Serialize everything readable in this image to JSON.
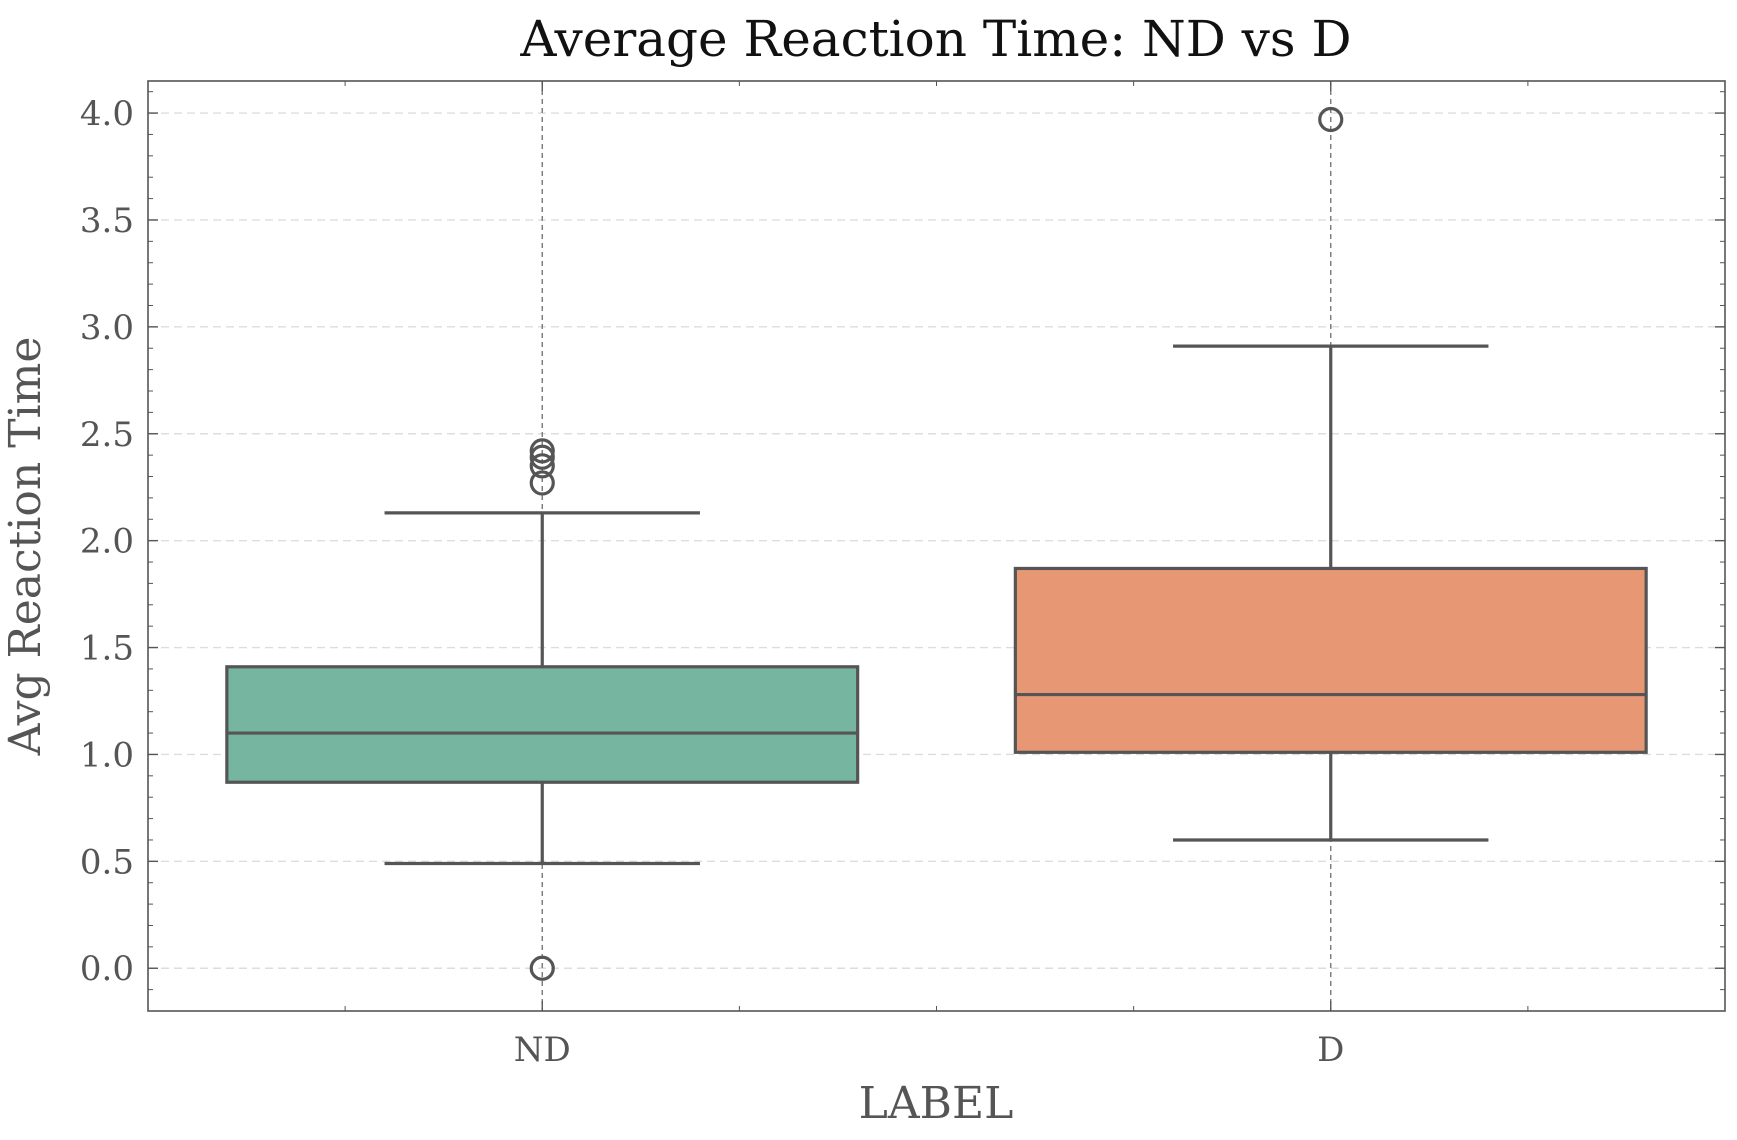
{
  "chart_data": {
    "type": "box",
    "title": "Average Reaction Time: ND vs D",
    "xlabel": "LABEL",
    "ylabel": "Avg Reaction Time",
    "categories": [
      "ND",
      "D"
    ],
    "ylim": [
      -0.2,
      4.15
    ],
    "yticks": [
      0.0,
      0.5,
      1.0,
      1.5,
      2.0,
      2.5,
      3.0,
      3.5,
      4.0
    ],
    "ytick_labels": [
      "0.0",
      "0.5",
      "1.0",
      "1.5",
      "2.0",
      "2.5",
      "3.0",
      "3.5",
      "4.0"
    ],
    "grid": true,
    "boxes": [
      {
        "category": "ND",
        "whisker_low": 0.49,
        "q1": 0.87,
        "median": 1.1,
        "q3": 1.41,
        "whisker_high": 2.13,
        "outliers": [
          0.0,
          2.27,
          2.35,
          2.39,
          2.42
        ],
        "color": "#76b6a1"
      },
      {
        "category": "D",
        "whisker_low": 0.6,
        "q1": 1.01,
        "median": 1.28,
        "q3": 1.87,
        "whisker_high": 2.91,
        "outliers": [
          3.97
        ],
        "color": "#e89775"
      }
    ],
    "line_color": "#555555"
  }
}
